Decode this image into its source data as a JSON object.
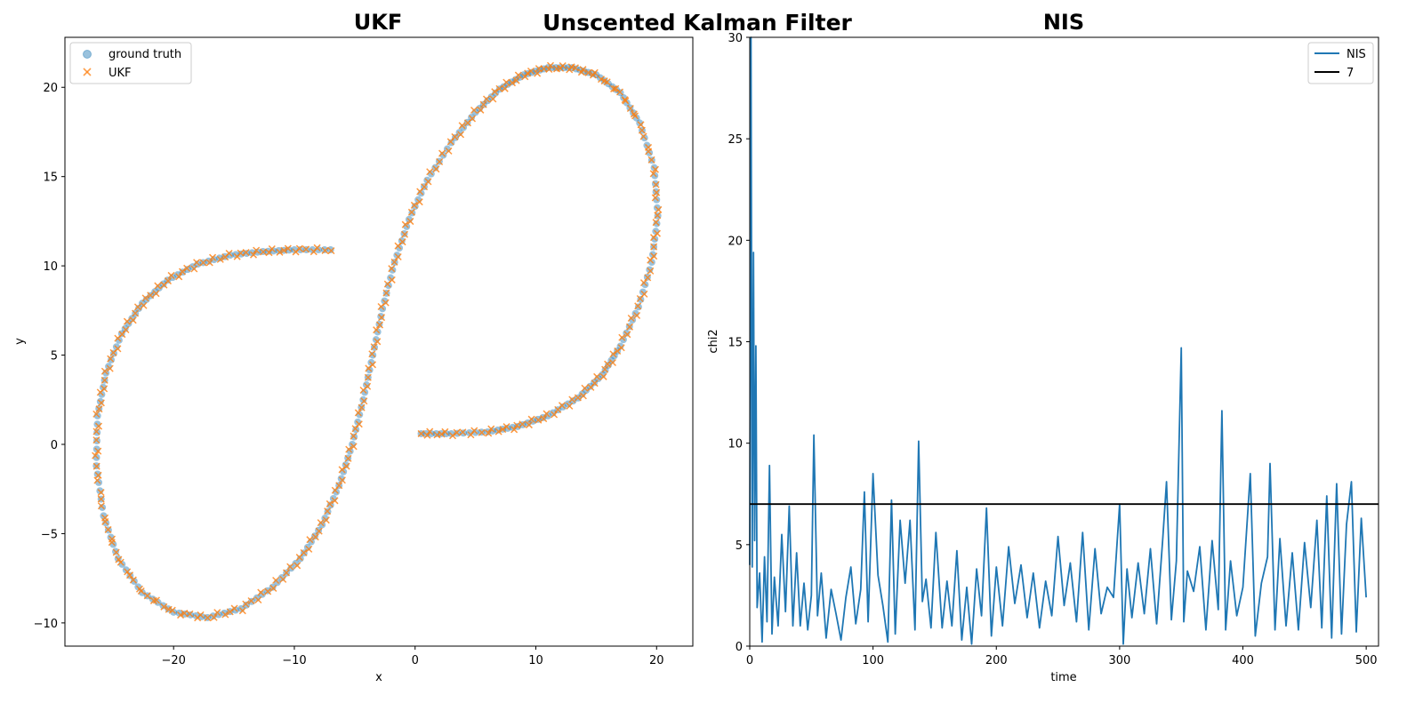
{
  "suptitle": "Unscented Kalman Filter",
  "colors": {
    "ground_truth": "#1f77b4",
    "ukf": "#ff7f0e",
    "nis": "#1f77b4",
    "threshold": "#000000"
  },
  "chart_data": [
    {
      "type": "scatter",
      "title": "UKF",
      "xlabel": "x",
      "ylabel": "y",
      "xlim": [
        -29,
        23
      ],
      "ylim": [
        -11.3,
        22.8
      ],
      "xticks": [
        -20,
        -10,
        0,
        10,
        20
      ],
      "yticks": [
        -10,
        -5,
        0,
        5,
        10,
        15,
        20
      ],
      "xtick_labels": [
        "−20",
        "−10",
        "0",
        "10",
        "20"
      ],
      "ytick_labels": [
        "−10",
        "−5",
        "0",
        "5",
        "10",
        "15",
        "20"
      ],
      "legend_position": "upper-left",
      "grid": false,
      "series": [
        {
          "name": "ground truth",
          "marker": "circle",
          "points": [
            [
              0.5,
              0.6
            ],
            [
              3,
              0.6
            ],
            [
              6,
              0.7
            ],
            [
              8.5,
              1.0
            ],
            [
              11,
              1.6
            ],
            [
              13.5,
              2.6
            ],
            [
              15.5,
              3.9
            ],
            [
              17,
              5.5
            ],
            [
              18.5,
              7.7
            ],
            [
              19.6,
              10.2
            ],
            [
              20.1,
              12.8
            ],
            [
              19.8,
              15.5
            ],
            [
              18.6,
              18.0
            ],
            [
              17,
              19.7
            ],
            [
              15,
              20.7
            ],
            [
              13,
              21.1
            ],
            [
              11,
              21.1
            ],
            [
              9,
              20.7
            ],
            [
              7,
              19.9
            ],
            [
              5,
              18.6
            ],
            [
              3,
              16.9
            ],
            [
              1,
              14.8
            ],
            [
              -0.5,
              12.6
            ],
            [
              -1.7,
              10.2
            ],
            [
              -2.7,
              7.6
            ],
            [
              -3.5,
              5.0
            ],
            [
              -4.3,
              2.5
            ],
            [
              -5.2,
              0
            ],
            [
              -6.3,
              -2.3
            ],
            [
              -7.7,
              -4.5
            ],
            [
              -9.5,
              -6.4
            ],
            [
              -11.8,
              -8.0
            ],
            [
              -14.4,
              -9.2
            ],
            [
              -17.2,
              -9.7
            ],
            [
              -20,
              -9.4
            ],
            [
              -22.6,
              -8.3
            ],
            [
              -24.6,
              -6.4
            ],
            [
              -25.8,
              -4.0
            ],
            [
              -26.4,
              -1.2
            ],
            [
              -26.3,
              1.6
            ],
            [
              -25.6,
              4.0
            ],
            [
              -24.3,
              6.2
            ],
            [
              -22.6,
              7.9
            ],
            [
              -20.5,
              9.2
            ],
            [
              -18,
              10.1
            ],
            [
              -15.3,
              10.6
            ],
            [
              -12.6,
              10.8
            ],
            [
              -10,
              10.9
            ],
            [
              -7,
              10.9
            ]
          ]
        },
        {
          "name": "UKF",
          "marker": "x",
          "points": [
            [
              0.5,
              0.6
            ],
            [
              3,
              0.6
            ],
            [
              6,
              0.7
            ],
            [
              8.5,
              1.0
            ],
            [
              11,
              1.6
            ],
            [
              13.5,
              2.6
            ],
            [
              15.5,
              3.9
            ],
            [
              17,
              5.5
            ],
            [
              18.5,
              7.7
            ],
            [
              19.6,
              10.2
            ],
            [
              20.1,
              12.8
            ],
            [
              19.8,
              15.5
            ],
            [
              18.6,
              18.0
            ],
            [
              17,
              19.7
            ],
            [
              15,
              20.7
            ],
            [
              13,
              21.1
            ],
            [
              11,
              21.1
            ],
            [
              9,
              20.7
            ],
            [
              7,
              19.9
            ],
            [
              5,
              18.6
            ],
            [
              3,
              16.9
            ],
            [
              1,
              14.8
            ],
            [
              -0.5,
              12.6
            ],
            [
              -1.7,
              10.2
            ],
            [
              -2.7,
              7.6
            ],
            [
              -3.5,
              5.0
            ],
            [
              -4.3,
              2.5
            ],
            [
              -5.2,
              0
            ],
            [
              -6.3,
              -2.3
            ],
            [
              -7.7,
              -4.5
            ],
            [
              -9.5,
              -6.4
            ],
            [
              -11.8,
              -8.0
            ],
            [
              -14.4,
              -9.2
            ],
            [
              -17.2,
              -9.7
            ],
            [
              -20,
              -9.4
            ],
            [
              -22.6,
              -8.3
            ],
            [
              -24.6,
              -6.4
            ],
            [
              -25.8,
              -4.0
            ],
            [
              -26.4,
              -1.2
            ],
            [
              -26.3,
              1.6
            ],
            [
              -25.6,
              4.0
            ],
            [
              -24.3,
              6.2
            ],
            [
              -22.6,
              7.9
            ],
            [
              -20.5,
              9.2
            ],
            [
              -18,
              10.1
            ],
            [
              -15.3,
              10.6
            ],
            [
              -12.6,
              10.8
            ],
            [
              -10,
              10.9
            ],
            [
              -7,
              10.9
            ]
          ]
        }
      ]
    },
    {
      "type": "line",
      "title": "NIS",
      "xlabel": "time",
      "ylabel": "chi2",
      "xlim": [
        0,
        510
      ],
      "ylim": [
        0,
        30
      ],
      "xticks": [
        0,
        100,
        200,
        300,
        400,
        500
      ],
      "yticks": [
        0,
        5,
        10,
        15,
        20,
        25,
        30
      ],
      "xtick_labels": [
        "0",
        "100",
        "200",
        "300",
        "400",
        "500"
      ],
      "ytick_labels": [
        "0",
        "5",
        "10",
        "15",
        "20",
        "25",
        "30"
      ],
      "legend_position": "upper-right",
      "grid": false,
      "series": [
        {
          "name": "NIS",
          "x": [
            0,
            1,
            2,
            3,
            4,
            5,
            6,
            8,
            10,
            12,
            14,
            16,
            18,
            20,
            23,
            26,
            29,
            32,
            35,
            38,
            41,
            44,
            47,
            50,
            52,
            55,
            58,
            62,
            66,
            70,
            74,
            78,
            82,
            86,
            90,
            93,
            96,
            100,
            104,
            108,
            112,
            115,
            118,
            122,
            126,
            130,
            134,
            137,
            140,
            143,
            147,
            151,
            156,
            160,
            164,
            168,
            172,
            176,
            180,
            184,
            188,
            192,
            196,
            200,
            205,
            210,
            215,
            220,
            225,
            230,
            235,
            240,
            245,
            250,
            255,
            260,
            265,
            270,
            275,
            280,
            285,
            290,
            295,
            300,
            303,
            306,
            310,
            315,
            320,
            325,
            330,
            335,
            338,
            342,
            346,
            350,
            352,
            355,
            360,
            365,
            370,
            375,
            380,
            383,
            386,
            390,
            395,
            400,
            406,
            410,
            415,
            420,
            422,
            426,
            430,
            435,
            440,
            445,
            450,
            455,
            460,
            464,
            468,
            472,
            476,
            480,
            484,
            488,
            492,
            496,
            500
          ],
          "values": [
            4.0,
            30,
            3.9,
            19.4,
            5.2,
            14.8,
            1.9,
            3.6,
            0.2,
            4.4,
            1.2,
            8.9,
            0.6,
            3.4,
            1.0,
            5.5,
            1.7,
            6.9,
            1.0,
            4.6,
            1.0,
            3.1,
            0.8,
            2.5,
            10.4,
            1.5,
            3.6,
            0.4,
            2.8,
            1.6,
            0.3,
            2.4,
            3.9,
            1.1,
            2.8,
            7.6,
            1.2,
            8.5,
            3.5,
            2.0,
            0.2,
            7.2,
            0.6,
            6.2,
            3.1,
            6.2,
            0.8,
            10.1,
            2.2,
            3.3,
            0.9,
            5.6,
            0.9,
            3.2,
            1.0,
            4.7,
            0.3,
            2.9,
            0.1,
            3.8,
            1.5,
            6.8,
            0.5,
            3.9,
            1.0,
            4.9,
            2.1,
            4.0,
            1.4,
            3.6,
            0.9,
            3.2,
            1.5,
            5.4,
            2.0,
            4.1,
            1.2,
            5.6,
            0.8,
            4.8,
            1.6,
            2.9,
            2.4,
            7.0,
            0.1,
            3.8,
            1.4,
            4.1,
            1.6,
            4.8,
            1.1,
            5.3,
            8.1,
            1.3,
            4.2,
            14.7,
            1.2,
            3.7,
            2.7,
            4.9,
            0.8,
            5.2,
            1.8,
            11.6,
            0.8,
            4.2,
            1.5,
            2.9,
            8.5,
            0.5,
            3.1,
            4.4,
            9.0,
            0.8,
            5.3,
            1.0,
            4.6,
            0.8,
            5.1,
            1.9,
            6.2,
            0.9,
            7.4,
            0.4,
            8.0,
            0.6,
            6.0,
            8.1,
            0.7,
            6.3,
            2.4
          ]
        },
        {
          "name": "7",
          "constant": 7
        }
      ]
    }
  ]
}
